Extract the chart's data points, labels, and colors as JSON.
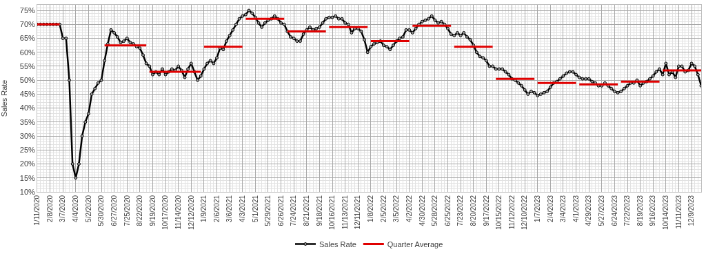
{
  "chart_data": {
    "type": "line",
    "ylabel": "Sales Rate",
    "legend": "bottom",
    "grid": true,
    "marker": "circle",
    "line_style": "solid",
    "xlim": [
      "2020-01-11",
      "2023-12-30"
    ],
    "ylim": [
      10,
      77
    ],
    "yticks": [
      {
        "value": 10,
        "label": "10%"
      },
      {
        "value": 15,
        "label": "15%"
      },
      {
        "value": 20,
        "label": "20%"
      },
      {
        "value": 25,
        "label": "25%"
      },
      {
        "value": 30,
        "label": "30%"
      },
      {
        "value": 35,
        "label": "35%"
      },
      {
        "value": 40,
        "label": "40%"
      },
      {
        "value": 45,
        "label": "45%"
      },
      {
        "value": 50,
        "label": "50%"
      },
      {
        "value": 55,
        "label": "55%"
      },
      {
        "value": 60,
        "label": "60%"
      },
      {
        "value": 65,
        "label": "65%"
      },
      {
        "value": 70,
        "label": "70%"
      },
      {
        "value": 75,
        "label": "75%"
      }
    ],
    "xticks": [
      {
        "value": "2020-01-11",
        "label": "1/11/2020"
      },
      {
        "value": "2020-02-08",
        "label": "2/8/2020"
      },
      {
        "value": "2020-03-07",
        "label": "3/7/2020"
      },
      {
        "value": "2020-04-04",
        "label": "4/4/2020"
      },
      {
        "value": "2020-05-02",
        "label": "5/2/2020"
      },
      {
        "value": "2020-05-30",
        "label": "5/30/2020"
      },
      {
        "value": "2020-06-27",
        "label": "6/27/2020"
      },
      {
        "value": "2020-07-25",
        "label": "7/25/2020"
      },
      {
        "value": "2020-08-22",
        "label": "8/22/2020"
      },
      {
        "value": "2020-09-19",
        "label": "9/19/2020"
      },
      {
        "value": "2020-10-17",
        "label": "10/17/2020"
      },
      {
        "value": "2020-11-14",
        "label": "11/14/2020"
      },
      {
        "value": "2020-12-12",
        "label": "12/12/2020"
      },
      {
        "value": "2021-01-09",
        "label": "1/9/2021"
      },
      {
        "value": "2021-02-06",
        "label": "2/6/2021"
      },
      {
        "value": "2021-03-06",
        "label": "3/6/2021"
      },
      {
        "value": "2021-04-03",
        "label": "4/3/2021"
      },
      {
        "value": "2021-05-01",
        "label": "5/1/2021"
      },
      {
        "value": "2021-05-29",
        "label": "5/29/2021"
      },
      {
        "value": "2021-06-26",
        "label": "6/26/2021"
      },
      {
        "value": "2021-07-24",
        "label": "7/24/2021"
      },
      {
        "value": "2021-08-21",
        "label": "8/21/2021"
      },
      {
        "value": "2021-09-18",
        "label": "9/18/2021"
      },
      {
        "value": "2021-10-16",
        "label": "10/16/2021"
      },
      {
        "value": "2021-11-13",
        "label": "11/13/2021"
      },
      {
        "value": "2021-12-11",
        "label": "12/11/2021"
      },
      {
        "value": "2022-01-08",
        "label": "1/8/2022"
      },
      {
        "value": "2022-02-05",
        "label": "2/5/2022"
      },
      {
        "value": "2022-03-05",
        "label": "3/5/2022"
      },
      {
        "value": "2022-04-02",
        "label": "4/2/2022"
      },
      {
        "value": "2022-04-30",
        "label": "4/30/2022"
      },
      {
        "value": "2022-05-28",
        "label": "5/28/2022"
      },
      {
        "value": "2022-06-25",
        "label": "6/25/2022"
      },
      {
        "value": "2022-07-23",
        "label": "7/23/2022"
      },
      {
        "value": "2022-08-20",
        "label": "8/20/2022"
      },
      {
        "value": "2022-09-17",
        "label": "9/17/2022"
      },
      {
        "value": "2022-10-15",
        "label": "10/15/2022"
      },
      {
        "value": "2022-11-12",
        "label": "11/12/2022"
      },
      {
        "value": "2022-12-10",
        "label": "12/10/2022"
      },
      {
        "value": "2023-01-07",
        "label": "1/7/2023"
      },
      {
        "value": "2023-02-04",
        "label": "2/4/2023"
      },
      {
        "value": "2023-03-04",
        "label": "3/4/2023"
      },
      {
        "value": "2023-04-01",
        "label": "4/1/2023"
      },
      {
        "value": "2023-04-29",
        "label": "4/29/2023"
      },
      {
        "value": "2023-05-27",
        "label": "5/27/2023"
      },
      {
        "value": "2023-06-24",
        "label": "6/24/2023"
      },
      {
        "value": "2023-07-22",
        "label": "7/22/2023"
      },
      {
        "value": "2023-08-19",
        "label": "8/19/2023"
      },
      {
        "value": "2023-09-16",
        "label": "9/16/2023"
      },
      {
        "value": "2023-10-14",
        "label": "10/14/2023"
      },
      {
        "value": "2023-11-11",
        "label": "11/11/2023"
      },
      {
        "value": "2023-12-09",
        "label": "12/9/2023"
      }
    ],
    "x": [
      "2020-01-11",
      "2020-01-18",
      "2020-01-25",
      "2020-02-01",
      "2020-02-08",
      "2020-02-15",
      "2020-02-22",
      "2020-02-29",
      "2020-03-07",
      "2020-03-14",
      "2020-03-21",
      "2020-03-28",
      "2020-04-04",
      "2020-04-11",
      "2020-04-18",
      "2020-04-25",
      "2020-05-02",
      "2020-05-09",
      "2020-05-16",
      "2020-05-23",
      "2020-05-30",
      "2020-06-06",
      "2020-06-13",
      "2020-06-20",
      "2020-06-27",
      "2020-07-04",
      "2020-07-11",
      "2020-07-18",
      "2020-07-25",
      "2020-08-01",
      "2020-08-08",
      "2020-08-15",
      "2020-08-22",
      "2020-08-29",
      "2020-09-05",
      "2020-09-12",
      "2020-09-19",
      "2020-09-26",
      "2020-10-03",
      "2020-10-10",
      "2020-10-17",
      "2020-10-24",
      "2020-10-31",
      "2020-11-07",
      "2020-11-14",
      "2020-11-21",
      "2020-11-28",
      "2020-12-05",
      "2020-12-12",
      "2020-12-19",
      "2020-12-26",
      "2021-01-02",
      "2021-01-09",
      "2021-01-16",
      "2021-01-23",
      "2021-01-30",
      "2021-02-06",
      "2021-02-13",
      "2021-02-20",
      "2021-02-27",
      "2021-03-06",
      "2021-03-13",
      "2021-03-20",
      "2021-03-27",
      "2021-04-03",
      "2021-04-10",
      "2021-04-17",
      "2021-04-24",
      "2021-05-01",
      "2021-05-08",
      "2021-05-15",
      "2021-05-22",
      "2021-05-29",
      "2021-06-05",
      "2021-06-12",
      "2021-06-19",
      "2021-06-26",
      "2021-07-03",
      "2021-07-10",
      "2021-07-17",
      "2021-07-24",
      "2021-07-31",
      "2021-08-07",
      "2021-08-14",
      "2021-08-21",
      "2021-08-28",
      "2021-09-04",
      "2021-09-11",
      "2021-09-18",
      "2021-09-25",
      "2021-10-02",
      "2021-10-09",
      "2021-10-16",
      "2021-10-23",
      "2021-10-30",
      "2021-11-06",
      "2021-11-13",
      "2021-11-20",
      "2021-11-27",
      "2021-12-04",
      "2021-12-11",
      "2021-12-18",
      "2021-12-25",
      "2022-01-01",
      "2022-01-08",
      "2022-01-15",
      "2022-01-22",
      "2022-01-29",
      "2022-02-05",
      "2022-02-12",
      "2022-02-19",
      "2022-02-26",
      "2022-03-05",
      "2022-03-12",
      "2022-03-19",
      "2022-03-26",
      "2022-04-02",
      "2022-04-09",
      "2022-04-16",
      "2022-04-23",
      "2022-04-30",
      "2022-05-07",
      "2022-05-14",
      "2022-05-21",
      "2022-05-28",
      "2022-06-04",
      "2022-06-11",
      "2022-06-18",
      "2022-06-25",
      "2022-07-02",
      "2022-07-09",
      "2022-07-16",
      "2022-07-23",
      "2022-07-30",
      "2022-08-06",
      "2022-08-13",
      "2022-08-20",
      "2022-08-27",
      "2022-09-03",
      "2022-09-10",
      "2022-09-17",
      "2022-09-24",
      "2022-10-01",
      "2022-10-08",
      "2022-10-15",
      "2022-10-22",
      "2022-10-29",
      "2022-11-05",
      "2022-11-12",
      "2022-11-19",
      "2022-11-26",
      "2022-12-03",
      "2022-12-10",
      "2022-12-17",
      "2022-12-24",
      "2022-12-31",
      "2023-01-07",
      "2023-01-14",
      "2023-01-21",
      "2023-01-28",
      "2023-02-04",
      "2023-02-11",
      "2023-02-18",
      "2023-02-25",
      "2023-03-04",
      "2023-03-11",
      "2023-03-18",
      "2023-03-25",
      "2023-04-01",
      "2023-04-08",
      "2023-04-15",
      "2023-04-22",
      "2023-04-29",
      "2023-05-06",
      "2023-05-13",
      "2023-05-20",
      "2023-05-27",
      "2023-06-03",
      "2023-06-10",
      "2023-06-17",
      "2023-06-24",
      "2023-07-01",
      "2023-07-08",
      "2023-07-15",
      "2023-07-22",
      "2023-07-29",
      "2023-08-05",
      "2023-08-12",
      "2023-08-19",
      "2023-08-26",
      "2023-09-02",
      "2023-09-09",
      "2023-09-16",
      "2023-09-23",
      "2023-09-30",
      "2023-10-07",
      "2023-10-14",
      "2023-10-21",
      "2023-10-28",
      "2023-11-04",
      "2023-11-11",
      "2023-11-18",
      "2023-11-25",
      "2023-12-02",
      "2023-12-09",
      "2023-12-16",
      "2023-12-23",
      "2023-12-30"
    ],
    "series": [
      {
        "name": "Sales Rate",
        "color": "#000000",
        "values": [
          70,
          70,
          70,
          70,
          70,
          70,
          70,
          70,
          65,
          65,
          50,
          20,
          15,
          20,
          30,
          35,
          38,
          45,
          47,
          49,
          50,
          57,
          63,
          68,
          67,
          65.5,
          63.5,
          64,
          65,
          63.5,
          63,
          62,
          61.5,
          59,
          56,
          55,
          52,
          53,
          52,
          54,
          52,
          53,
          54,
          53.5,
          55,
          53.5,
          51,
          54,
          56,
          53,
          50,
          51.5,
          54,
          56,
          57,
          56,
          58,
          61.5,
          61,
          64,
          66,
          68,
          70,
          72,
          73,
          73.5,
          75,
          74,
          72.5,
          70.5,
          69,
          70.5,
          71.5,
          72,
          73,
          72,
          70.5,
          70,
          67.5,
          65.5,
          65,
          64,
          64,
          66.5,
          68,
          69,
          68,
          68.5,
          69,
          70.5,
          72,
          72.5,
          72.5,
          73,
          72,
          72,
          70.5,
          70,
          67,
          68.5,
          68.5,
          67.5,
          64.5,
          60,
          62,
          63,
          63.5,
          64,
          62.5,
          62,
          61,
          62.5,
          64,
          65,
          65.5,
          68,
          68,
          67,
          68.5,
          70,
          71,
          71.5,
          72,
          73,
          71.5,
          70.5,
          71,
          70,
          68.5,
          66.5,
          66,
          67,
          66,
          67,
          65.5,
          64.5,
          62.5,
          60,
          58.5,
          58,
          57,
          55,
          55,
          54,
          54,
          54,
          53,
          52,
          50.5,
          50,
          49,
          48,
          46.5,
          45,
          46,
          45.5,
          44.5,
          45,
          45.5,
          46,
          47.5,
          49,
          49.5,
          50.5,
          51.5,
          52.5,
          53,
          53,
          52,
          51,
          50.5,
          50.5,
          50.5,
          49.5,
          49,
          48,
          48,
          49,
          48,
          47,
          46,
          45.5,
          46,
          47,
          48,
          49,
          49,
          50,
          48,
          49,
          49.5,
          50.5,
          51.5,
          53,
          54,
          52,
          56,
          52,
          53,
          51,
          55,
          55,
          53,
          53.5,
          56,
          55,
          52,
          48
        ]
      },
      {
        "name": "Quarter Average",
        "color": "#e00000",
        "marker": "none",
        "x": [
          "2020-01-11",
          "2020-02-29"
        ],
        "values": [
          70,
          70
        ]
      },
      {
        "color": "#e00000",
        "marker": "none",
        "x": [
          "2020-06-06",
          "2020-09-05"
        ],
        "values": [
          62.5,
          62.5
        ]
      },
      {
        "color": "#e00000",
        "marker": "none",
        "x": [
          "2020-09-12",
          "2021-01-02"
        ],
        "values": [
          53,
          53
        ]
      },
      {
        "color": "#e00000",
        "marker": "none",
        "x": [
          "2021-01-09",
          "2021-04-03"
        ],
        "values": [
          62,
          62
        ]
      },
      {
        "color": "#e00000",
        "marker": "none",
        "x": [
          "2021-04-10",
          "2021-07-03"
        ],
        "values": [
          72,
          72
        ]
      },
      {
        "color": "#e00000",
        "marker": "none",
        "x": [
          "2021-07-10",
          "2021-10-02"
        ],
        "values": [
          67.5,
          67.5
        ]
      },
      {
        "color": "#e00000",
        "marker": "none",
        "x": [
          "2021-10-09",
          "2022-01-01"
        ],
        "values": [
          69,
          69
        ]
      },
      {
        "color": "#e00000",
        "marker": "none",
        "x": [
          "2022-01-08",
          "2022-04-02"
        ],
        "values": [
          64,
          64
        ]
      },
      {
        "color": "#e00000",
        "marker": "none",
        "x": [
          "2022-04-09",
          "2022-07-02"
        ],
        "values": [
          69.5,
          69.5
        ]
      },
      {
        "color": "#e00000",
        "marker": "none",
        "x": [
          "2022-07-09",
          "2022-10-01"
        ],
        "values": [
          62,
          62
        ]
      },
      {
        "color": "#e00000",
        "marker": "none",
        "x": [
          "2022-10-08",
          "2022-12-31"
        ],
        "values": [
          50.5,
          50.5
        ]
      },
      {
        "color": "#e00000",
        "marker": "none",
        "x": [
          "2023-01-07",
          "2023-04-01"
        ],
        "values": [
          49,
          49
        ]
      },
      {
        "color": "#e00000",
        "marker": "none",
        "x": [
          "2023-04-08",
          "2023-07-01"
        ],
        "values": [
          48.5,
          48.5
        ]
      },
      {
        "color": "#e00000",
        "marker": "none",
        "x": [
          "2023-07-08",
          "2023-09-30"
        ],
        "values": [
          49.5,
          49.5
        ]
      },
      {
        "color": "#e00000",
        "marker": "none",
        "x": [
          "2023-10-07",
          "2023-12-30"
        ],
        "values": [
          53.5,
          53.5
        ]
      }
    ]
  }
}
